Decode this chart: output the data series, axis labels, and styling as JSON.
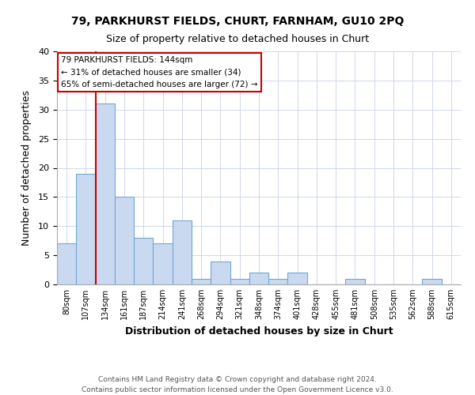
{
  "title1": "79, PARKHURST FIELDS, CHURT, FARNHAM, GU10 2PQ",
  "title2": "Size of property relative to detached houses in Churt",
  "xlabel": "Distribution of detached houses by size in Churt",
  "ylabel": "Number of detached properties",
  "bar_labels": [
    "80sqm",
    "107sqm",
    "134sqm",
    "161sqm",
    "187sqm",
    "214sqm",
    "241sqm",
    "268sqm",
    "294sqm",
    "321sqm",
    "348sqm",
    "374sqm",
    "401sqm",
    "428sqm",
    "455sqm",
    "481sqm",
    "508sqm",
    "535sqm",
    "562sqm",
    "588sqm",
    "615sqm"
  ],
  "bar_values": [
    7,
    19,
    31,
    15,
    8,
    7,
    11,
    1,
    4,
    1,
    2,
    1,
    2,
    0,
    0,
    1,
    0,
    0,
    0,
    1,
    0
  ],
  "bar_color": "#c9d9f0",
  "bar_edge_color": "#6fa8d6",
  "vline_x_index": 2,
  "vline_color": "#cc0000",
  "annotation_title": "79 PARKHURST FIELDS: 144sqm",
  "annotation_line1": "← 31% of detached houses are smaller (34)",
  "annotation_line2": "65% of semi-detached houses are larger (72) →",
  "annotation_box_color": "#ffffff",
  "annotation_box_edge": "#cc0000",
  "ylim": [
    0,
    40
  ],
  "yticks": [
    0,
    5,
    10,
    15,
    20,
    25,
    30,
    35,
    40
  ],
  "footer1": "Contains HM Land Registry data © Crown copyright and database right 2024.",
  "footer2": "Contains public sector information licensed under the Open Government Licence v3.0.",
  "background_color": "#ffffff",
  "grid_color": "#d0d8e8"
}
